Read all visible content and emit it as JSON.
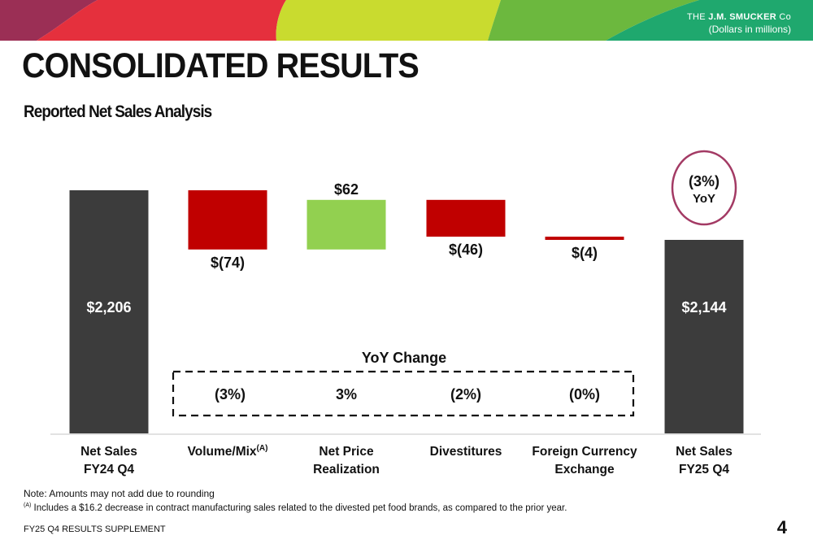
{
  "header": {
    "logo_prefix": "THE",
    "logo_name": "J.M. SMUCKER",
    "logo_suffix": "Co",
    "unit_note": "(Dollars in millions)"
  },
  "page": {
    "title": "CONSOLIDATED RESULTS",
    "subtitle": "Reported Net Sales Analysis"
  },
  "colors": {
    "total_bar": "#3c3c3c",
    "decrease_bar": "#c00000",
    "increase_bar": "#92d050",
    "yoy_circle": "#a33a64"
  },
  "chart_data": {
    "type": "bar",
    "subtype": "waterfall",
    "categories": [
      [
        "Net Sales",
        "FY24 Q4"
      ],
      [
        "Volume/Mix",
        ""
      ],
      [
        "Net Price",
        "Realization"
      ],
      [
        "Divestitures",
        ""
      ],
      [
        "Foreign Currency",
        "Exchange"
      ],
      [
        "Net Sales",
        "FY25 Q4"
      ]
    ],
    "category_superscripts": [
      "",
      "(A)",
      "",
      "",
      "",
      ""
    ],
    "values": [
      2206,
      -74,
      62,
      -46,
      -4,
      2144
    ],
    "kinds": [
      "total",
      "delta",
      "delta",
      "delta",
      "delta",
      "total"
    ],
    "value_labels": [
      "$2,206",
      "$(74)",
      "$62",
      "$(46)",
      "$(4)",
      "$2,144"
    ],
    "yoy_change_title": "YoY Change",
    "yoy_change": [
      "",
      "(3%)",
      "3%",
      "(2%)",
      "(0%)",
      ""
    ],
    "total_yoy": {
      "value": "(3%)",
      "label": "YoY"
    }
  },
  "notes": {
    "note": "Note: Amounts may not add due to rounding",
    "footnote_marker": "(A)",
    "footnote": " Includes a $16.2 decrease in contract manufacturing sales related to the divested pet food brands, as compared to the prior year."
  },
  "footer": {
    "label": "FY25 Q4 RESULTS SUPPLEMENT",
    "page_number": "4"
  }
}
